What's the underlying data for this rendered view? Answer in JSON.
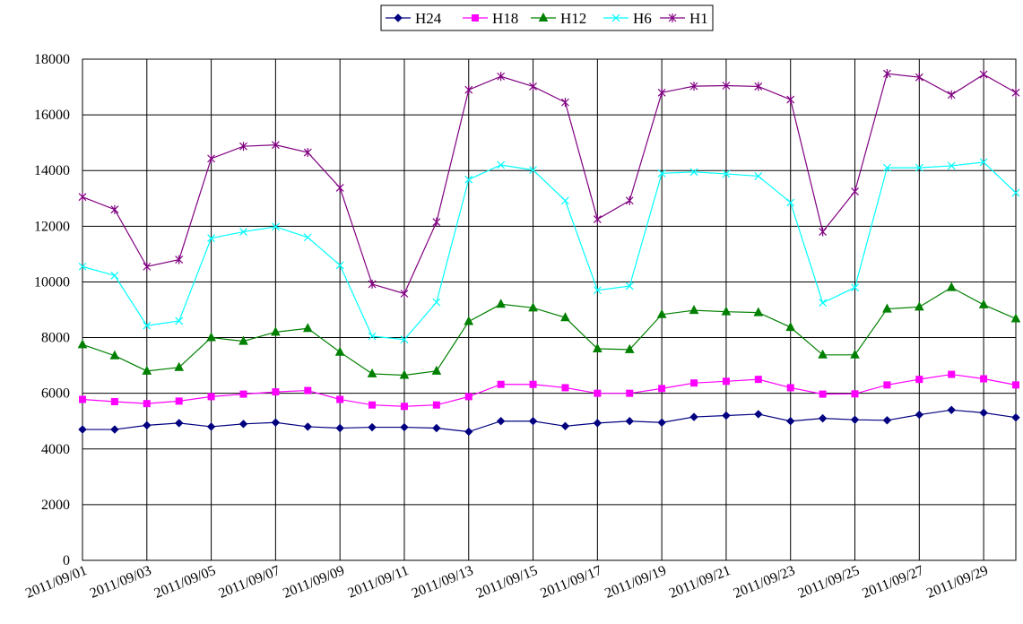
{
  "chart_data": {
    "type": "line",
    "title": "",
    "xlabel": "",
    "ylabel": "",
    "ylim": [
      0,
      18000
    ],
    "y_ticks": [
      "0",
      "2000",
      "4000",
      "6000",
      "8000",
      "10000",
      "12000",
      "14000",
      "16000",
      "18000"
    ],
    "x": [
      "2011/09/01",
      "2011/09/02",
      "2011/09/03",
      "2011/09/04",
      "2011/09/05",
      "2011/09/06",
      "2011/09/07",
      "2011/09/08",
      "2011/09/09",
      "2011/09/10",
      "2011/09/11",
      "2011/09/12",
      "2011/09/13",
      "2011/09/14",
      "2011/09/15",
      "2011/09/16",
      "2011/09/17",
      "2011/09/18",
      "2011/09/19",
      "2011/09/20",
      "2011/09/21",
      "2011/09/22",
      "2011/09/23",
      "2011/09/24",
      "2011/09/25",
      "2011/09/26",
      "2011/09/27",
      "2011/09/28",
      "2011/09/29",
      "2011/09/30"
    ],
    "x_tick_labels": [
      "2011/09/01",
      "2011/09/03",
      "2011/09/05",
      "2011/09/07",
      "2011/09/09",
      "2011/09/11",
      "2011/09/13",
      "2011/09/15",
      "2011/09/17",
      "2011/09/19",
      "2011/09/21",
      "2011/09/23",
      "2011/09/25",
      "2011/09/27",
      "2011/09/29"
    ],
    "grid": true,
    "legend_position": "top-center",
    "series": [
      {
        "name": "H24",
        "color": "#000080",
        "marker": "diamond",
        "values": [
          4700,
          4700,
          4850,
          4930,
          4800,
          4900,
          4950,
          4800,
          4750,
          4780,
          4780,
          4750,
          4620,
          5000,
          5000,
          4820,
          4930,
          5000,
          4950,
          5150,
          5200,
          5250,
          5000,
          5100,
          5050,
          5030,
          5230,
          5400,
          5300,
          5130
        ]
      },
      {
        "name": "H18",
        "color": "#FF00FF",
        "marker": "square",
        "values": [
          5780,
          5700,
          5630,
          5720,
          5880,
          5970,
          6050,
          6100,
          5780,
          5580,
          5530,
          5580,
          5880,
          6320,
          6320,
          6200,
          6000,
          6000,
          6170,
          6370,
          6430,
          6500,
          6200,
          5970,
          5980,
          6300,
          6500,
          6680,
          6520,
          6300
        ]
      },
      {
        "name": "H12",
        "color": "#008000",
        "marker": "triangle",
        "values": [
          7750,
          7350,
          6800,
          6930,
          8000,
          7870,
          8200,
          8330,
          7480,
          6700,
          6650,
          6800,
          8580,
          9200,
          9070,
          8720,
          7600,
          7570,
          8830,
          8980,
          8930,
          8900,
          8370,
          7380,
          7380,
          9030,
          9100,
          9800,
          9180,
          8680
        ]
      },
      {
        "name": "H6",
        "color": "#00FFFF",
        "marker": "x",
        "values": [
          10550,
          10230,
          8430,
          8600,
          11570,
          11800,
          11980,
          11600,
          10600,
          8050,
          7930,
          9270,
          13680,
          14200,
          14020,
          12920,
          9700,
          9850,
          13900,
          13950,
          13880,
          13800,
          12850,
          9250,
          9800,
          14100,
          14100,
          14170,
          14300,
          13200
        ]
      },
      {
        "name": "H1",
        "color": "#800080",
        "marker": "star",
        "values": [
          13050,
          12600,
          10550,
          10800,
          14430,
          14870,
          14920,
          14650,
          13380,
          9920,
          9580,
          12150,
          16900,
          17380,
          17020,
          16450,
          12250,
          12920,
          16800,
          17030,
          17050,
          17020,
          16550,
          11800,
          13250,
          17480,
          17350,
          16720,
          17450,
          16800
        ]
      }
    ]
  }
}
